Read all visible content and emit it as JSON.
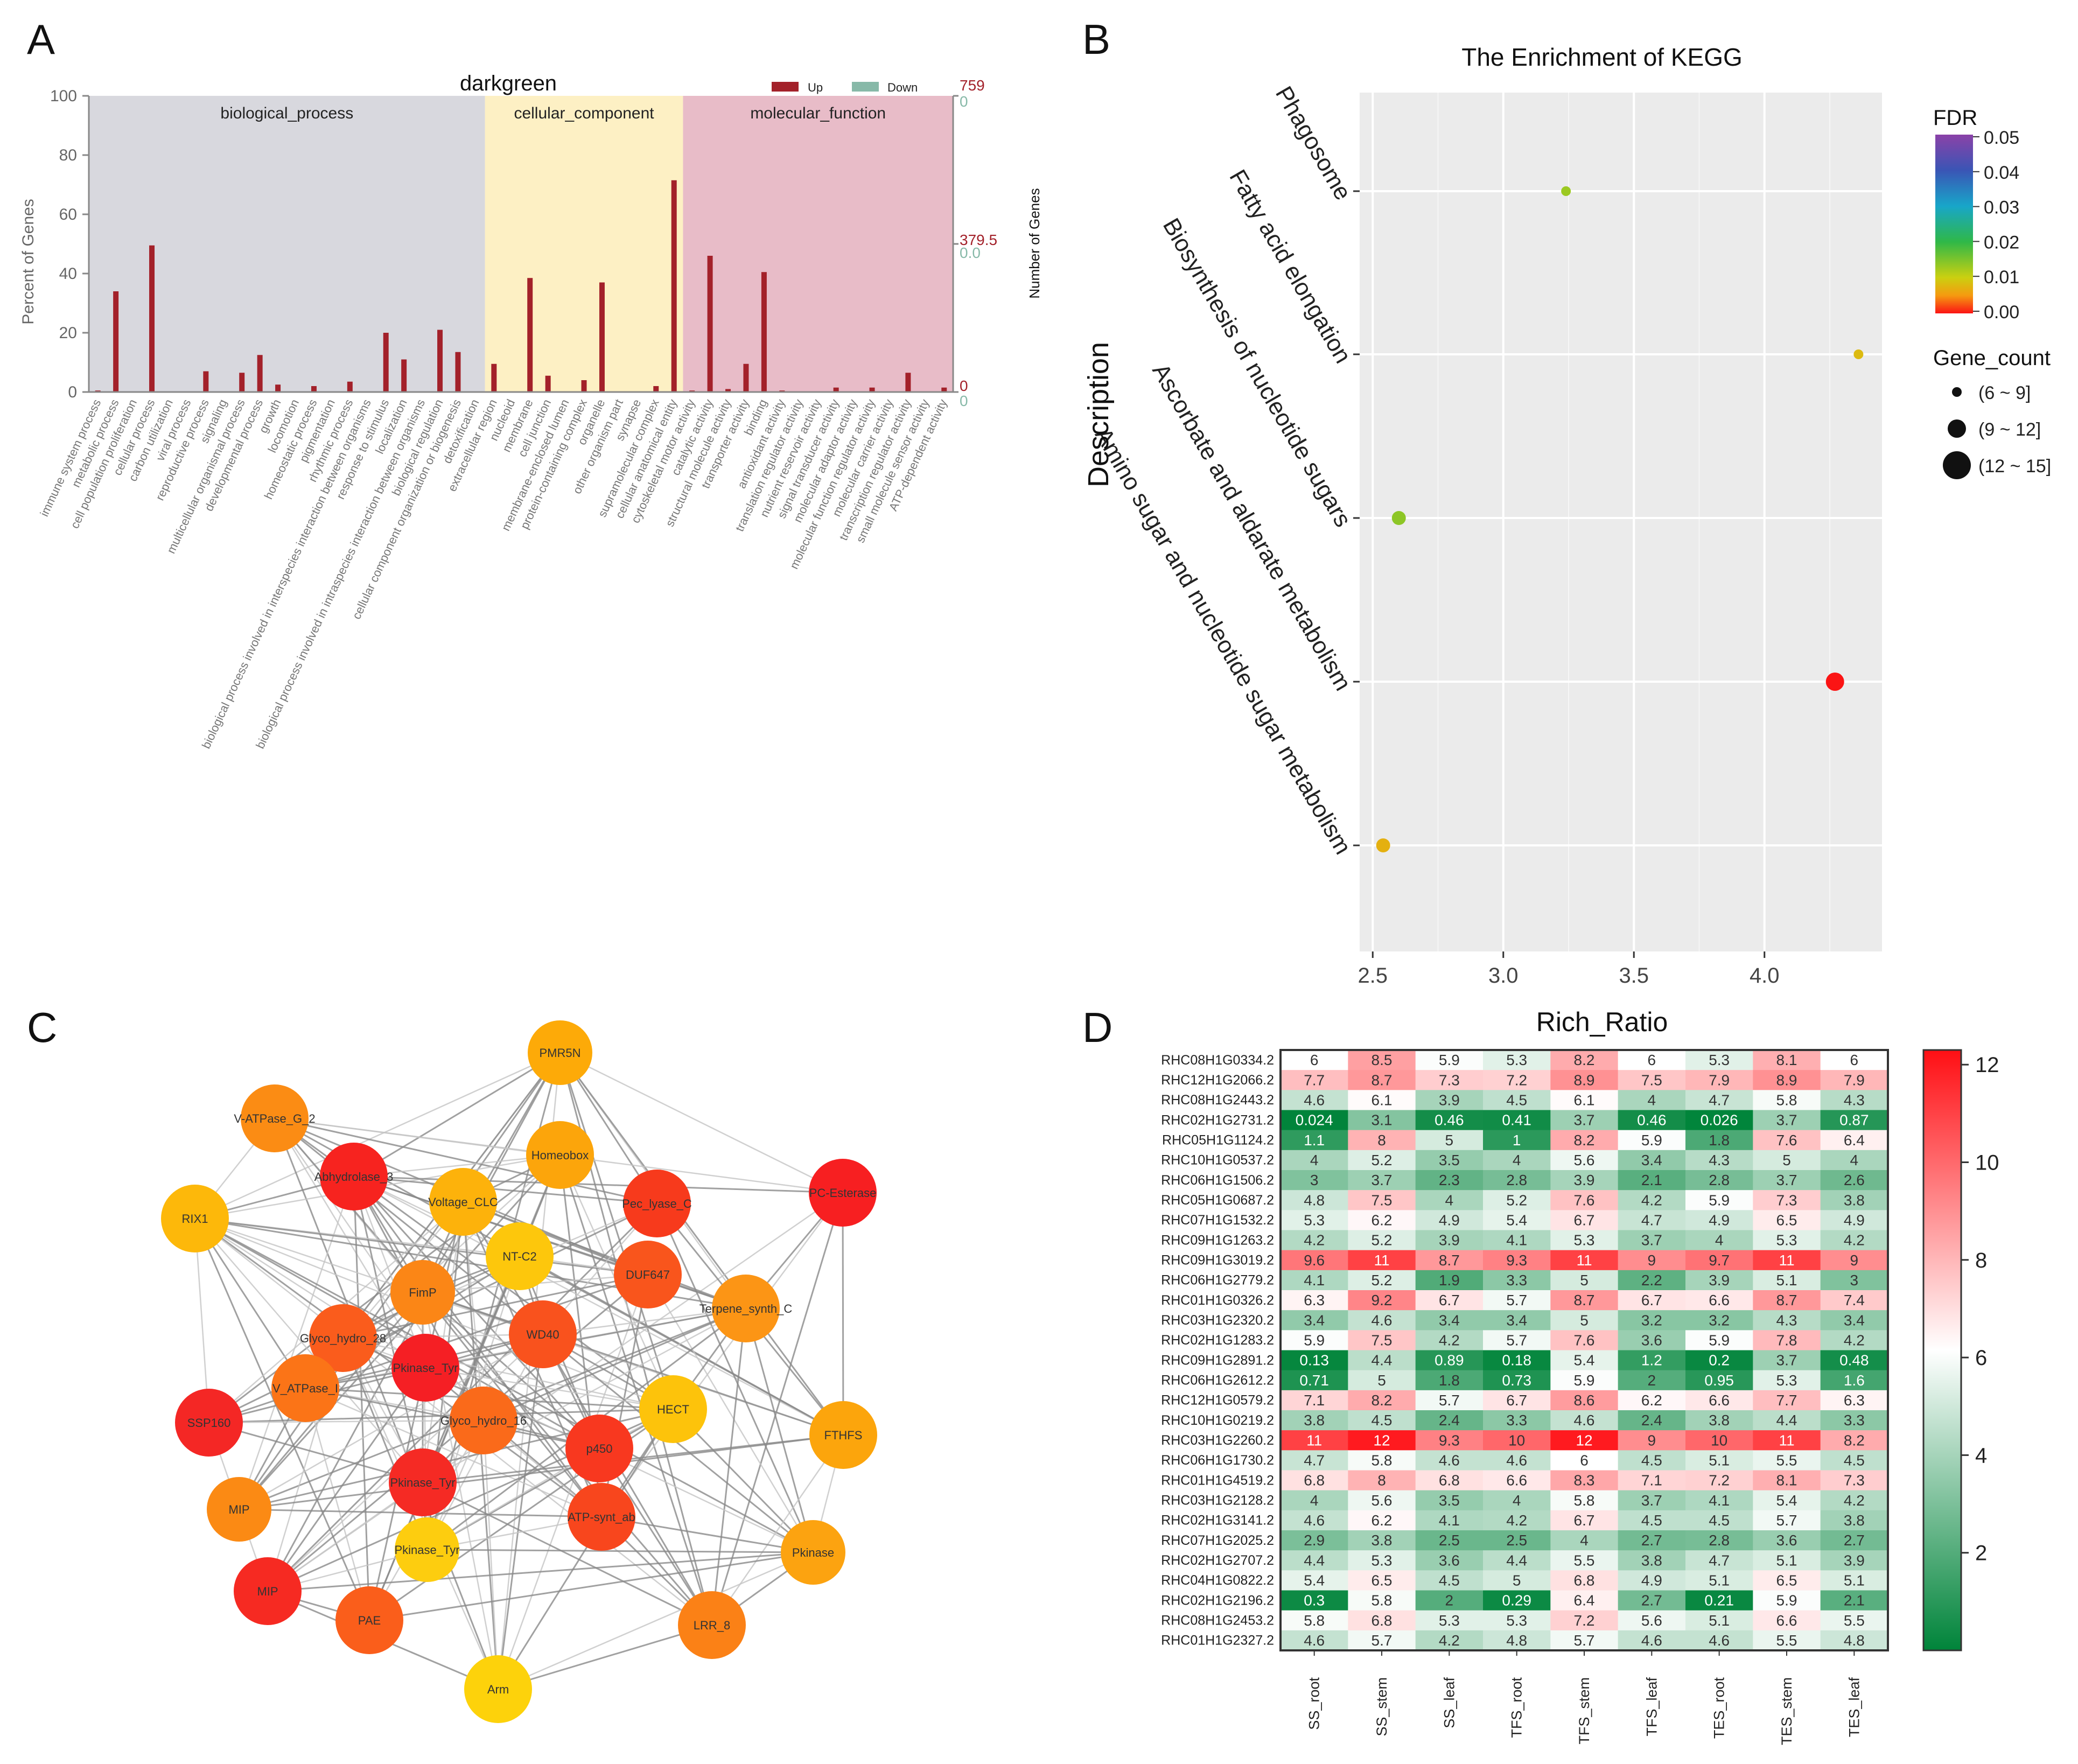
{
  "panels": {
    "a": {
      "letter": "A",
      "title": "darkgreen",
      "legend": {
        "up": "Up",
        "down": "Down"
      },
      "colors": {
        "up": "#a3212a",
        "down": "#87b9a8"
      },
      "y_left": {
        "label": "Percent of Genes",
        "ticks": [
          "0",
          "20",
          "40",
          "60",
          "80",
          "100"
        ]
      },
      "y_right": {
        "label": "Number of Genes",
        "up_ticks": [
          "0",
          "379.5",
          "759"
        ],
        "down_ticks": [
          "0",
          "0.0",
          "0"
        ]
      },
      "groups": [
        {
          "name": "biological_process",
          "color": "#d8d8de"
        },
        {
          "name": "cellular_component",
          "color": "#fdf0c4"
        },
        {
          "name": "molecular_function",
          "color": "#e8bcc8"
        }
      ]
    },
    "b": {
      "letter": "B",
      "title": "The Enrichment of KEGG",
      "ylabel": "Description",
      "fdr_title": "FDR",
      "fdr_ticks": [
        "0.05",
        "0.04",
        "0.03",
        "0.02",
        "0.01",
        "0.00"
      ],
      "size_title": "Gene_count",
      "size_labels": [
        "(6 ~ 9]",
        "(9 ~ 12]",
        "(12 ~ 15]"
      ]
    },
    "c": {
      "letter": "C",
      "nodes": [
        {
          "label": "PMR5N",
          "color": "#fdaa08"
        },
        {
          "label": "V-ATPase_G_2",
          "color": "#fb8c14"
        },
        {
          "label": "Homeobox",
          "color": "#fca50b"
        },
        {
          "label": "Abhydrolase_3",
          "color": "#f7231f"
        },
        {
          "label": "PC-Esterase",
          "color": "#f71f21"
        },
        {
          "label": "RIX1",
          "color": "#fdb80a"
        },
        {
          "label": "Voltage_CLC",
          "color": "#fdb20b"
        },
        {
          "label": "Pec_lyase_C",
          "color": "#f73a1c"
        },
        {
          "label": "NT-C2",
          "color": "#fdc70c"
        },
        {
          "label": "DUF647",
          "color": "#f9551c"
        },
        {
          "label": "FimP",
          "color": "#fb8616"
        },
        {
          "label": "Terpene_synth_C",
          "color": "#fc9515"
        },
        {
          "label": "Glyco_hydro_28",
          "color": "#fa5c1c"
        },
        {
          "label": "WD40",
          "color": "#f9521d"
        },
        {
          "label": "V_ATPase_I",
          "color": "#fb7417"
        },
        {
          "label": "Pkinase_Tyr",
          "color": "#f51f24"
        },
        {
          "label": "SSP160",
          "color": "#f42725"
        },
        {
          "label": "HECT",
          "color": "#fdc30b"
        },
        {
          "label": "Glyco_hydro_16",
          "color": "#fa6a1a"
        },
        {
          "label": "FTHFS",
          "color": "#fca50c"
        },
        {
          "label": "p450",
          "color": "#f8381f"
        },
        {
          "label": "Pkinase_Tyr",
          "color": "#f52a24"
        },
        {
          "label": "MIP",
          "color": "#fb8a14"
        },
        {
          "label": "ATP-synt_ab",
          "color": "#f8461d"
        },
        {
          "label": "Pkinase_Tyr",
          "color": "#fdcd0f"
        },
        {
          "label": "Pkinase",
          "color": "#fca310"
        },
        {
          "label": "MIP",
          "color": "#f62a22"
        },
        {
          "label": "PAE",
          "color": "#fa5e1b"
        },
        {
          "label": "LRR_8",
          "color": "#fb8116"
        },
        {
          "label": "Arm",
          "color": "#fdd20b"
        }
      ]
    },
    "d": {
      "letter": "D",
      "title": "Rich_Ratio",
      "colorbar_ticks": [
        "2",
        "4",
        "6",
        "8",
        "10",
        "12"
      ]
    }
  },
  "chart_data": [
    {
      "type": "bar",
      "panel": "A",
      "title": "darkgreen",
      "xlabel": "",
      "ylabel": "Percent of Genes",
      "ylim": [
        0,
        100
      ],
      "y2label": "Number of Genes",
      "categories": [
        "immune system process",
        "metabolic process",
        "cell population proliferation",
        "cellular process",
        "carbon utilization",
        "viral process",
        "reproductive process",
        "signaling",
        "multicellular organismal process",
        "developmental process",
        "growth",
        "locomotion",
        "homeostatic process",
        "pigmentation",
        "rhythmic process",
        "biological process involved in interspecies interaction between organisms",
        "response to stimulus",
        "localization",
        "biological process involved in intraspecies interaction between organisms",
        "biological regulation",
        "cellular component organization or biogenesis",
        "detoxification",
        "extracellular region",
        "nucleoid",
        "membrane",
        "cell junction",
        "membrane-enclosed lumen",
        "protein-containing complex",
        "organelle",
        "other organism part",
        "synapse",
        "supramolecular complex",
        "cellular anatomical entity",
        "cytoskeletal motor activity",
        "catalytic activity",
        "structural molecule activity",
        "transporter activity",
        "binding",
        "antioxidant activity",
        "translation regulator activity",
        "nutrient reservoir activity",
        "signal transducer activity",
        "molecular adaptor activity",
        "molecular function regulator activity",
        "molecular carrier activity",
        "transcription regulator activity",
        "small molecule sensor activity",
        "ATP-dependent activity"
      ],
      "group_of_category": [
        0,
        0,
        0,
        0,
        0,
        0,
        0,
        0,
        0,
        0,
        0,
        0,
        0,
        0,
        0,
        0,
        0,
        0,
        0,
        0,
        0,
        0,
        1,
        1,
        1,
        1,
        1,
        1,
        1,
        1,
        1,
        1,
        1,
        2,
        2,
        2,
        2,
        2,
        2,
        2,
        2,
        2,
        2,
        2,
        2,
        2,
        2,
        2
      ],
      "series": [
        {
          "name": "Up",
          "values": [
            0.5,
            34,
            0,
            49.5,
            0,
            0,
            7,
            0,
            6.5,
            12.5,
            2.5,
            0,
            2,
            0,
            3.5,
            0,
            20,
            11,
            0,
            21,
            13.5,
            0,
            9.5,
            0,
            38.5,
            5.5,
            0,
            4,
            37,
            0,
            0,
            2,
            71.5,
            0.5,
            46,
            1,
            9.5,
            40.5,
            0.5,
            0,
            0,
            1.5,
            0,
            1.5,
            0,
            6.5,
            0,
            1.5
          ]
        },
        {
          "name": "Down",
          "values": [
            0,
            0,
            0,
            0,
            0,
            0,
            0,
            0,
            0,
            0,
            0,
            0,
            0,
            0,
            0,
            0,
            0,
            0,
            0,
            0,
            0,
            0,
            0,
            0,
            0,
            0,
            0,
            0,
            0,
            0,
            0,
            0,
            0,
            0,
            0,
            0,
            0,
            0,
            0,
            0,
            0,
            0,
            0,
            0,
            0,
            0,
            0,
            0
          ]
        }
      ]
    },
    {
      "type": "scatter",
      "panel": "B",
      "title": "The Enrichment of KEGG",
      "xlabel": "",
      "ylabel": "Description",
      "xlim": [
        2.45,
        4.45
      ],
      "xticks": [
        "2.5",
        "3.0",
        "3.5",
        "4.0"
      ],
      "categories": [
        "Phagosome",
        "Fatty acid elongation",
        "Biosynthesis of nucleotide sugars",
        "Ascorbate and aldarate metabolism",
        "Amino sugar and nucleotide sugar metabolism"
      ],
      "points": [
        {
          "y": "Phagosome",
          "x": 3.24,
          "fdr": 0.013,
          "gene_count_class": "(6 ~ 9]"
        },
        {
          "y": "Fatty acid elongation",
          "x": 4.36,
          "fdr": 0.008,
          "gene_count_class": "(6 ~ 9]"
        },
        {
          "y": "Biosynthesis of nucleotide sugars",
          "x": 2.6,
          "fdr": 0.014,
          "gene_count_class": "(9 ~ 12]"
        },
        {
          "y": "Ascorbate and aldarate metabolism",
          "x": 4.27,
          "fdr": 0.0,
          "gene_count_class": "(12 ~ 15]"
        },
        {
          "y": "Amino sugar and nucleotide sugar metabolism",
          "x": 2.54,
          "fdr": 0.007,
          "gene_count_class": "(9 ~ 12]"
        }
      ],
      "fdr_range": [
        0,
        0.05
      ]
    },
    {
      "type": "heatmap",
      "panel": "D",
      "title": "Rich_Ratio",
      "columns": [
        "SS_root",
        "SS_stem",
        "SS_leaf",
        "TFS_root",
        "TFS_stem",
        "TFS_leaf",
        "TES_root",
        "TES_stem",
        "TES_leaf"
      ],
      "color_range": [
        0.024,
        12.3
      ],
      "rows": [
        {
          "gene": "RHC08H1G0334.2",
          "values": [
            "6",
            "8.5",
            "5.9",
            "5.3",
            "8.2",
            "6",
            "5.3",
            "8.1",
            "6"
          ]
        },
        {
          "gene": "RHC12H1G2066.2",
          "values": [
            "7.7",
            "8.7",
            "7.3",
            "7.2",
            "8.9",
            "7.5",
            "7.9",
            "8.9",
            "7.9"
          ]
        },
        {
          "gene": "RHC08H1G2443.2",
          "values": [
            "4.6",
            "6.1",
            "3.9",
            "4.5",
            "6.1",
            "4",
            "4.7",
            "5.8",
            "4.3"
          ]
        },
        {
          "gene": "RHC02H1G2731.2",
          "values": [
            "0.024",
            "3.1",
            "0.46",
            "0.41",
            "3.7",
            "0.46",
            "0.026",
            "3.7",
            "0.87"
          ]
        },
        {
          "gene": "RHC05H1G1124.2",
          "values": [
            "1.1",
            "8",
            "5",
            "1",
            "8.2",
            "5.9",
            "1.8",
            "7.6",
            "6.4"
          ]
        },
        {
          "gene": "RHC10H1G0537.2",
          "values": [
            "4",
            "5.2",
            "3.5",
            "4",
            "5.6",
            "3.4",
            "4.3",
            "5",
            "4"
          ]
        },
        {
          "gene": "RHC06H1G1506.2",
          "values": [
            "3",
            "3.7",
            "2.3",
            "2.8",
            "3.9",
            "2.1",
            "2.8",
            "3.7",
            "2.6"
          ]
        },
        {
          "gene": "RHC05H1G0687.2",
          "values": [
            "4.8",
            "7.5",
            "4",
            "5.2",
            "7.6",
            "4.2",
            "5.9",
            "7.3",
            "3.8"
          ]
        },
        {
          "gene": "RHC07H1G1532.2",
          "values": [
            "5.3",
            "6.2",
            "4.9",
            "5.4",
            "6.7",
            "4.7",
            "4.9",
            "6.5",
            "4.9"
          ]
        },
        {
          "gene": "RHC09H1G1263.2",
          "values": [
            "4.2",
            "5.2",
            "3.9",
            "4.1",
            "5.3",
            "3.7",
            "4",
            "5.3",
            "4.2"
          ]
        },
        {
          "gene": "RHC09H1G3019.2",
          "values": [
            "9.6",
            "11",
            "8.7",
            "9.3",
            "11",
            "9",
            "9.7",
            "11",
            "9"
          ]
        },
        {
          "gene": "RHC06H1G2779.2",
          "values": [
            "4.1",
            "5.2",
            "1.9",
            "3.3",
            "5",
            "2.2",
            "3.9",
            "5.1",
            "3"
          ]
        },
        {
          "gene": "RHC01H1G0326.2",
          "values": [
            "6.3",
            "9.2",
            "6.7",
            "5.7",
            "8.7",
            "6.7",
            "6.6",
            "8.7",
            "7.4"
          ]
        },
        {
          "gene": "RHC03H1G2320.2",
          "values": [
            "3.4",
            "4.6",
            "3.4",
            "3.4",
            "5",
            "3.2",
            "3.2",
            "4.3",
            "3.4"
          ]
        },
        {
          "gene": "RHC02H1G1283.2",
          "values": [
            "5.9",
            "7.5",
            "4.2",
            "5.7",
            "7.6",
            "3.6",
            "5.9",
            "7.8",
            "4.2"
          ]
        },
        {
          "gene": "RHC09H1G2891.2",
          "values": [
            "0.13",
            "4.4",
            "0.89",
            "0.18",
            "5.4",
            "1.2",
            "0.2",
            "3.7",
            "0.48"
          ]
        },
        {
          "gene": "RHC06H1G2612.2",
          "values": [
            "0.71",
            "5",
            "1.8",
            "0.73",
            "5.9",
            "2",
            "0.95",
            "5.3",
            "1.6"
          ]
        },
        {
          "gene": "RHC12H1G0579.2",
          "values": [
            "7.1",
            "8.2",
            "5.7",
            "6.7",
            "8.6",
            "6.2",
            "6.6",
            "7.7",
            "6.3"
          ]
        },
        {
          "gene": "RHC10H1G0219.2",
          "values": [
            "3.8",
            "4.5",
            "2.4",
            "3.3",
            "4.6",
            "2.4",
            "3.8",
            "4.4",
            "3.3"
          ]
        },
        {
          "gene": "RHC03H1G2260.2",
          "values": [
            "11",
            "12",
            "9.3",
            "10",
            "12",
            "9",
            "10",
            "11",
            "8.2"
          ]
        },
        {
          "gene": "RHC06H1G1730.2",
          "values": [
            "4.7",
            "5.8",
            "4.6",
            "4.6",
            "6",
            "4.5",
            "5.1",
            "5.5",
            "4.5"
          ]
        },
        {
          "gene": "RHC01H1G4519.2",
          "values": [
            "6.8",
            "8",
            "6.8",
            "6.6",
            "8.3",
            "7.1",
            "7.2",
            "8.1",
            "7.3"
          ]
        },
        {
          "gene": "RHC03H1G2128.2",
          "values": [
            "4",
            "5.6",
            "3.5",
            "4",
            "5.8",
            "3.7",
            "4.1",
            "5.4",
            "4.2"
          ]
        },
        {
          "gene": "RHC02H1G3141.2",
          "values": [
            "4.6",
            "6.2",
            "4.1",
            "4.2",
            "6.7",
            "4.5",
            "4.5",
            "5.7",
            "3.8"
          ]
        },
        {
          "gene": "RHC07H1G2025.2",
          "values": [
            "2.9",
            "3.8",
            "2.5",
            "2.5",
            "4",
            "2.7",
            "2.8",
            "3.6",
            "2.7"
          ]
        },
        {
          "gene": "RHC02H1G2707.2",
          "values": [
            "4.4",
            "5.3",
            "3.6",
            "4.4",
            "5.5",
            "3.8",
            "4.7",
            "5.1",
            "3.9"
          ]
        },
        {
          "gene": "RHC04H1G0822.2",
          "values": [
            "5.4",
            "6.5",
            "4.5",
            "5",
            "6.8",
            "4.9",
            "5.1",
            "6.5",
            "5.1"
          ]
        },
        {
          "gene": "RHC02H1G2196.2",
          "values": [
            "0.3",
            "5.8",
            "2",
            "0.29",
            "6.4",
            "2.7",
            "0.21",
            "5.9",
            "2.1"
          ]
        },
        {
          "gene": "RHC08H1G2453.2",
          "values": [
            "5.8",
            "6.8",
            "5.3",
            "5.3",
            "7.2",
            "5.6",
            "5.1",
            "6.6",
            "5.5"
          ]
        },
        {
          "gene": "RHC01H1G2327.2",
          "values": [
            "4.6",
            "5.7",
            "4.2",
            "4.8",
            "5.7",
            "4.6",
            "4.6",
            "5.5",
            "4.8"
          ]
        }
      ]
    }
  ]
}
